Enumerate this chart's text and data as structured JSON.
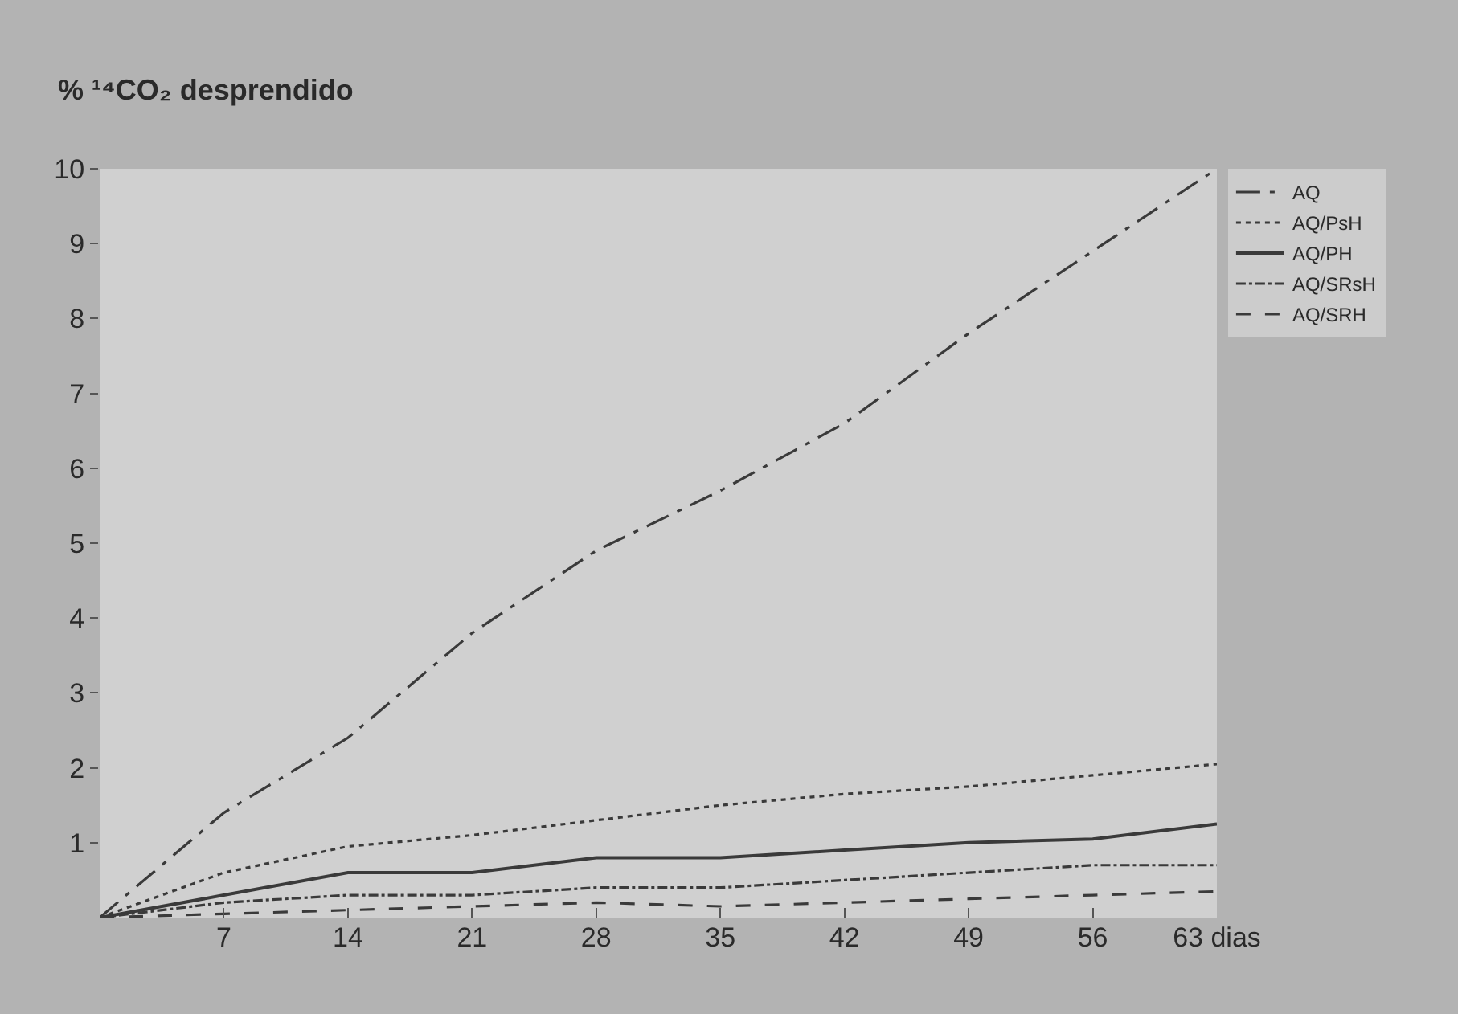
{
  "chart_data": {
    "type": "line",
    "ylabel": "% ¹⁴CO₂ desprendido",
    "x": [
      0,
      7,
      14,
      21,
      28,
      35,
      42,
      49,
      56,
      63
    ],
    "xlim": [
      0,
      63
    ],
    "xticks": [
      7,
      14,
      21,
      28,
      35,
      42,
      49,
      56,
      {
        "value": 63,
        "label": "63 dias"
      }
    ],
    "ylim": [
      0,
      10
    ],
    "yticks": [
      1,
      2,
      3,
      4,
      5,
      6,
      7,
      8,
      9,
      10
    ],
    "grid": false,
    "legend": "top right",
    "marker": "none",
    "series": [
      {
        "name": "AQ",
        "color": "#3a3a3a",
        "line_style": "dashdot",
        "values": [
          0,
          1.4,
          2.4,
          3.8,
          4.9,
          5.7,
          6.6,
          7.8,
          8.9,
          10.0
        ]
      },
      {
        "name": "AQ/PsH",
        "color": "#3a3a3a",
        "line_style": "dotted",
        "values": [
          0,
          0.6,
          0.95,
          1.1,
          1.3,
          1.5,
          1.65,
          1.75,
          1.9,
          2.05
        ]
      },
      {
        "name": "AQ/PH",
        "color": "#3a3a3a",
        "line_style": "solid",
        "values": [
          0,
          0.3,
          0.6,
          0.6,
          0.8,
          0.8,
          0.9,
          1.0,
          1.05,
          1.25
        ]
      },
      {
        "name": "AQ/SRsH",
        "color": "#3a3a3a",
        "line_style": "dashdotdot",
        "values": [
          0,
          0.2,
          0.3,
          0.3,
          0.4,
          0.4,
          0.5,
          0.6,
          0.7,
          0.7
        ]
      },
      {
        "name": "AQ/SRH",
        "color": "#3a3a3a",
        "line_style": "dashed",
        "values": [
          0,
          0.05,
          0.1,
          0.15,
          0.2,
          0.15,
          0.2,
          0.25,
          0.3,
          0.35
        ]
      }
    ]
  }
}
